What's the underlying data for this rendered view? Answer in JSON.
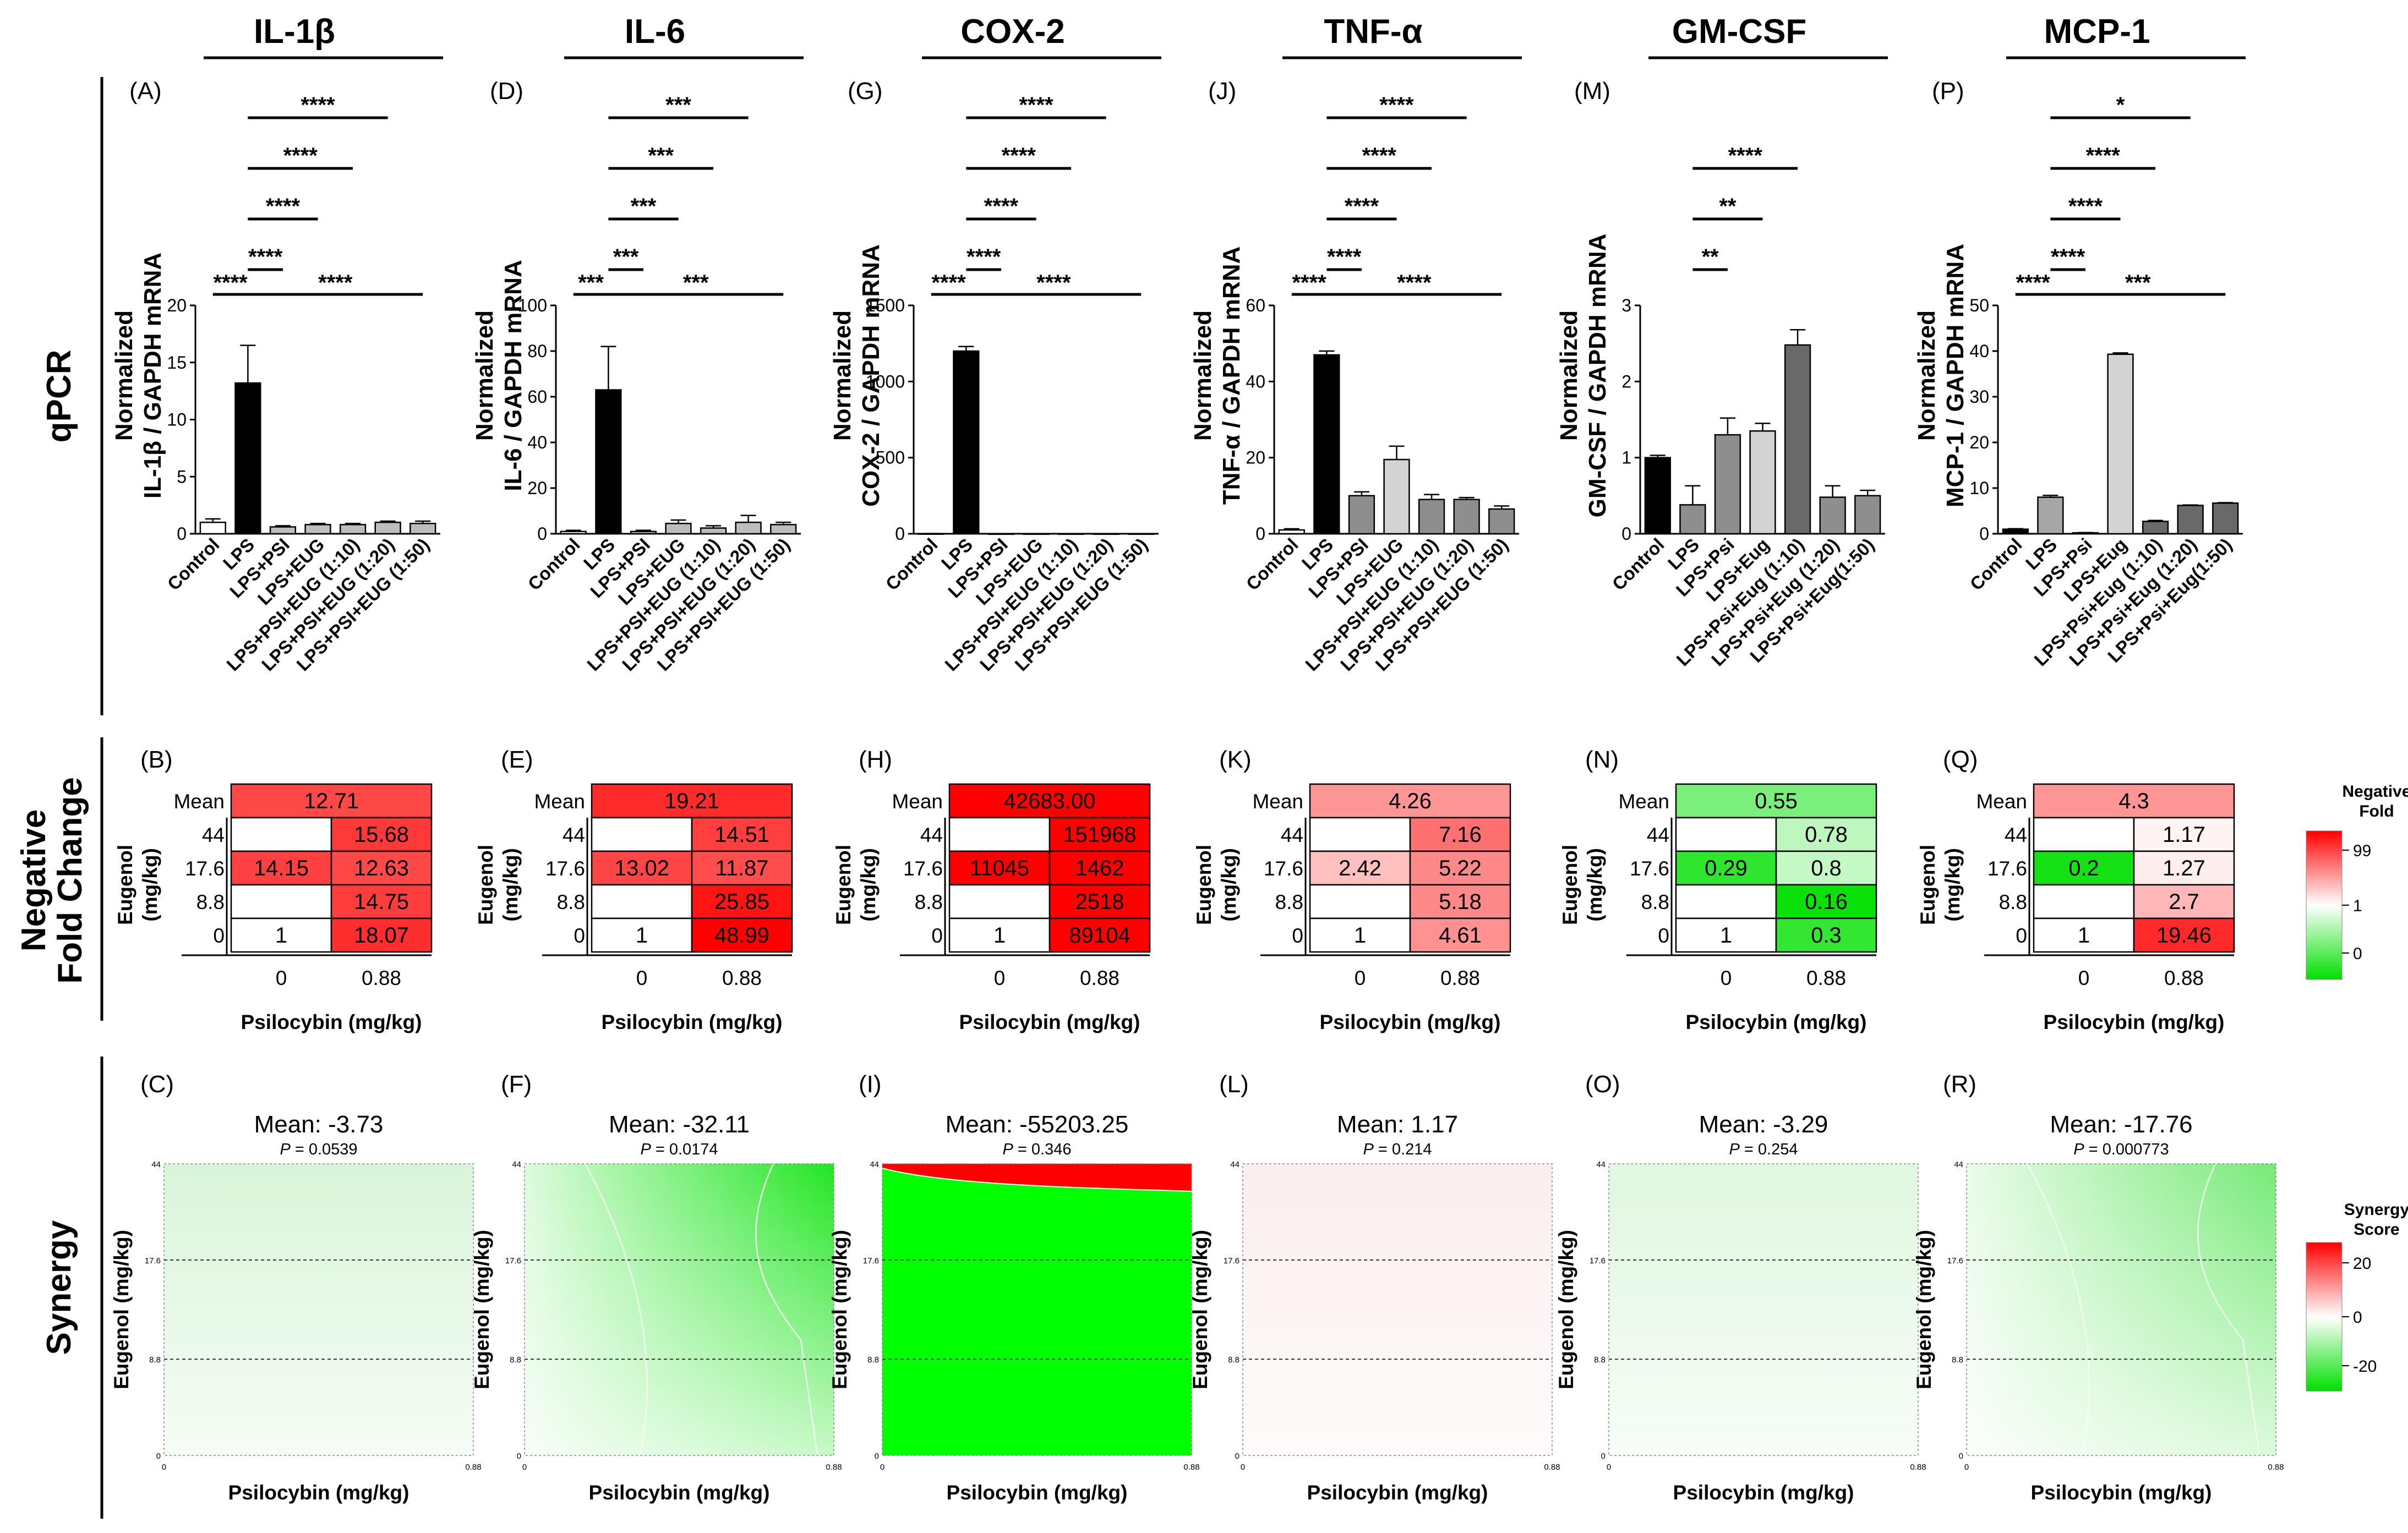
{
  "figure": {
    "rows": {
      "qpcr": "qPCR",
      "nfc_1": "Negative",
      "nfc_2": "Fold Change",
      "synergy": "Synergy"
    },
    "heatmap_axes": {
      "x_label": "Psilocybin (mg/kg)",
      "y_label_1": "Eugenol",
      "y_label_2": "(mg/kg)",
      "mean_label": "Mean",
      "x_ticks": [
        "0",
        "0.88"
      ],
      "y_ticks": [
        "44",
        "17.6",
        "8.8",
        "0"
      ]
    },
    "synergy_axes": {
      "x_label": "Psilocybin (mg/kg)",
      "y_label": "Eugenol (mg/kg)",
      "x_ticks": [
        "0",
        "0.88"
      ],
      "y_ticks": [
        "44",
        "17.6",
        "8.8",
        "0"
      ]
    },
    "legend_nfc": {
      "title_1": "Negative",
      "title_2": "Fold",
      "ticks": [
        "99",
        "1",
        "0"
      ],
      "colors": {
        "high": "#ff0000",
        "mid": "#ffffff",
        "low": "#00e000"
      }
    },
    "legend_syn": {
      "title_1": "Synergy",
      "title_2": "Score",
      "ticks": [
        "20",
        "0",
        "-20"
      ]
    }
  },
  "chart_data": [
    {
      "type": "bar",
      "marker": "IL-1β",
      "panel": "(A)",
      "ylabel_1": "Normalized",
      "ylabel_2": "IL-1β / GAPDH mRNA",
      "ylim": [
        0,
        20
      ],
      "yticks": [
        "0",
        "5",
        "10",
        "15",
        "20"
      ],
      "categories": [
        "Control",
        "LPS",
        "LPS+PSI",
        "LPS+EUG",
        "LPS+PSI+EUG (1:10)",
        "LPS+PSI+EUG (1:20)",
        "LPS+PSI+EUG (1:50)"
      ],
      "values": [
        1.0,
        13.2,
        0.6,
        0.8,
        0.8,
        1.0,
        0.9
      ],
      "errors": [
        0.3,
        3.3,
        0.1,
        0.1,
        0.1,
        0.1,
        0.2
      ],
      "bar_colors": [
        "#ffffff",
        "#000000",
        "#bdbdbd",
        "#bdbdbd",
        "#bdbdbd",
        "#bdbdbd",
        "#bdbdbd"
      ],
      "sig": [
        {
          "a": 1,
          "b": 2,
          "label": "****"
        },
        {
          "a": 1,
          "b": 3,
          "label": "****"
        },
        {
          "a": 1,
          "b": 4,
          "label": "****"
        },
        {
          "a": 1,
          "b": 5,
          "label": "****"
        }
      ],
      "base_sig": [
        {
          "a": 0,
          "b": 1,
          "label": "****"
        },
        {
          "a": 1,
          "b": 6,
          "label": "****"
        }
      ]
    },
    {
      "type": "bar",
      "marker": "IL-6",
      "panel": "(D)",
      "ylabel_1": "Normalized",
      "ylabel_2": "IL-6 / GAPDH mRNA",
      "ylim": [
        0,
        100
      ],
      "yticks": [
        "0",
        "20",
        "40",
        "60",
        "80",
        "100"
      ],
      "categories": [
        "Control",
        "LPS",
        "LPS+PSI",
        "LPS+EUG",
        "LPS+PSI+EUG (1:10)",
        "LPS+PSI+EUG (1:20)",
        "LPS+PSI+EUG (1:50)"
      ],
      "values": [
        1.0,
        63.0,
        1.0,
        4.5,
        2.5,
        5.0,
        4.0
      ],
      "errors": [
        0.5,
        19.0,
        0.5,
        1.5,
        1.0,
        3.0,
        1.0
      ],
      "bar_colors": [
        "#ffffff",
        "#000000",
        "#bdbdbd",
        "#bdbdbd",
        "#bdbdbd",
        "#bdbdbd",
        "#bdbdbd"
      ],
      "sig": [
        {
          "a": 1,
          "b": 2,
          "label": "***"
        },
        {
          "a": 1,
          "b": 3,
          "label": "***"
        },
        {
          "a": 1,
          "b": 4,
          "label": "***"
        },
        {
          "a": 1,
          "b": 5,
          "label": "***"
        }
      ],
      "base_sig": [
        {
          "a": 0,
          "b": 1,
          "label": "***"
        },
        {
          "a": 1,
          "b": 6,
          "label": "***"
        }
      ]
    },
    {
      "type": "bar",
      "marker": "COX-2",
      "panel": "(G)",
      "ylabel_1": "Normalized",
      "ylabel_2": "COX-2 / GAPDH mRNA",
      "ylim": [
        0,
        1500
      ],
      "yticks": [
        "0",
        "500",
        "1000",
        "1500"
      ],
      "categories": [
        "Control",
        "LPS",
        "LPS+PSI",
        "LPS+EUG",
        "LPS+PSI+EUG (1:10)",
        "LPS+PSI+EUG (1:20)",
        "LPS+PSI+EUG (1:50)"
      ],
      "values": [
        1.0,
        1200.0,
        0.5,
        0.5,
        0.5,
        0.5,
        0.5
      ],
      "errors": [
        0.2,
        30.0,
        0.1,
        0.1,
        0.1,
        0.1,
        0.1
      ],
      "bar_colors": [
        "#ffffff",
        "#000000",
        "#bdbdbd",
        "#bdbdbd",
        "#bdbdbd",
        "#bdbdbd",
        "#bdbdbd"
      ],
      "sig": [
        {
          "a": 1,
          "b": 2,
          "label": "****"
        },
        {
          "a": 1,
          "b": 3,
          "label": "****"
        },
        {
          "a": 1,
          "b": 4,
          "label": "****"
        },
        {
          "a": 1,
          "b": 5,
          "label": "****"
        }
      ],
      "base_sig": [
        {
          "a": 0,
          "b": 1,
          "label": "****"
        },
        {
          "a": 1,
          "b": 6,
          "label": "****"
        }
      ]
    },
    {
      "type": "bar",
      "marker": "TNF-α",
      "panel": "(J)",
      "ylabel_1": "Normalized",
      "ylabel_2": "TNF-α / GAPDH mRNA",
      "ylim": [
        0,
        60
      ],
      "yticks": [
        "0",
        "20",
        "40",
        "60"
      ],
      "categories": [
        "Control",
        "LPS",
        "LPS+PSI",
        "LPS+EUG",
        "LPS+PSI+EUG (1:10)",
        "LPS+PSI+EUG (1:20)",
        "LPS+PSI+EUG (1:50)"
      ],
      "values": [
        1.0,
        47.0,
        10.0,
        19.5,
        9.0,
        9.0,
        6.5
      ],
      "errors": [
        0.3,
        1.0,
        1.0,
        3.5,
        1.3,
        0.5,
        0.8
      ],
      "bar_colors": [
        "#ffffff",
        "#000000",
        "#8e8e8e",
        "#d3d3d3",
        "#8e8e8e",
        "#8e8e8e",
        "#8e8e8e"
      ],
      "sig": [
        {
          "a": 1,
          "b": 2,
          "label": "****"
        },
        {
          "a": 1,
          "b": 3,
          "label": "****"
        },
        {
          "a": 1,
          "b": 4,
          "label": "****"
        },
        {
          "a": 1,
          "b": 5,
          "label": "****"
        }
      ],
      "base_sig": [
        {
          "a": 0,
          "b": 1,
          "label": "****"
        },
        {
          "a": 1,
          "b": 6,
          "label": "****"
        }
      ]
    },
    {
      "type": "bar",
      "marker": "GM-CSF",
      "panel": "(M)",
      "ylabel_1": "Normalized",
      "ylabel_2": "GM-CSF / GAPDH mRNA",
      "ylim": [
        0,
        3
      ],
      "yticks": [
        "0",
        "1",
        "2",
        "3"
      ],
      "categories": [
        "Control",
        "LPS",
        "LPS+Psi",
        "LPS+Eug",
        "LPS+Psi+Eug (1:10)",
        "LPS+Psi+Eug (1:20)",
        "LPS+Psi+Eug(1:50)"
      ],
      "values": [
        1.0,
        0.38,
        1.3,
        1.35,
        2.48,
        0.48,
        0.5
      ],
      "errors": [
        0.03,
        0.25,
        0.22,
        0.1,
        0.2,
        0.15,
        0.07
      ],
      "bar_colors": [
        "#000000",
        "#8e8e8e",
        "#8e8e8e",
        "#d3d3d3",
        "#696969",
        "#8e8e8e",
        "#8e8e8e"
      ],
      "sig": [
        {
          "a": 1,
          "b": 2,
          "label": "**"
        },
        {
          "a": 1,
          "b": 3,
          "label": "**"
        },
        {
          "a": 1,
          "b": 4,
          "label": "****"
        }
      ],
      "base_sig": []
    },
    {
      "type": "bar",
      "marker": "MCP-1",
      "panel": "(P)",
      "ylabel_1": "Normalized",
      "ylabel_2": "MCP-1 / GAPDH mRNA",
      "ylim": [
        0,
        50
      ],
      "yticks": [
        "0",
        "10",
        "20",
        "30",
        "40",
        "50"
      ],
      "categories": [
        "Control",
        "LPS",
        "LPS+Psi",
        "LPS+Eug",
        "LPS+Psi+Eug (1:10)",
        "LPS+Psi+Eug (1:20)",
        "LPS+Psi+Eug(1:50)"
      ],
      "values": [
        1.0,
        8.0,
        0.2,
        39.3,
        2.7,
        6.2,
        6.7
      ],
      "errors": [
        0.1,
        0.4,
        0.05,
        0.3,
        0.2,
        0.1,
        0.1
      ],
      "bar_colors": [
        "#000000",
        "#a6a6a6",
        "#a6a6a6",
        "#d3d3d3",
        "#696969",
        "#696969",
        "#696969"
      ],
      "sig": [
        {
          "a": 1,
          "b": 2,
          "label": "****"
        },
        {
          "a": 1,
          "b": 3,
          "label": "****"
        },
        {
          "a": 1,
          "b": 4,
          "label": "****"
        },
        {
          "a": 1,
          "b": 5,
          "label": "*"
        }
      ],
      "base_sig": [
        {
          "a": 0,
          "b": 1,
          "label": "****"
        },
        {
          "a": 1,
          "b": 6,
          "label": "***"
        }
      ]
    },
    {
      "type": "table",
      "kind": "nfc",
      "panel": "(B)",
      "mean": "12.71",
      "rows": [
        [
          "",
          "15.68"
        ],
        [
          "14.15",
          "12.63"
        ],
        [
          "",
          "14.75"
        ],
        [
          "1",
          "18.07"
        ]
      ]
    },
    {
      "type": "table",
      "kind": "nfc",
      "panel": "(E)",
      "mean": "19.21",
      "rows": [
        [
          "",
          "14.51"
        ],
        [
          "13.02",
          "11.87"
        ],
        [
          "",
          "25.85"
        ],
        [
          "1",
          "48.99"
        ]
      ]
    },
    {
      "type": "table",
      "kind": "nfc",
      "panel": "(H)",
      "mean": "42683.00",
      "rows": [
        [
          "",
          "151968"
        ],
        [
          "11045",
          "1462"
        ],
        [
          "",
          "2518"
        ],
        [
          "1",
          "89104"
        ]
      ]
    },
    {
      "type": "table",
      "kind": "nfc",
      "panel": "(K)",
      "mean": "4.26",
      "rows": [
        [
          "",
          "7.16"
        ],
        [
          "2.42",
          "5.22"
        ],
        [
          "",
          "5.18"
        ],
        [
          "1",
          "4.61"
        ]
      ]
    },
    {
      "type": "table",
      "kind": "nfc",
      "panel": "(N)",
      "mean": "0.55",
      "rows": [
        [
          "",
          "0.78"
        ],
        [
          "0.29",
          "0.8"
        ],
        [
          "",
          "0.16"
        ],
        [
          "1",
          "0.3"
        ]
      ]
    },
    {
      "type": "table",
      "kind": "nfc",
      "panel": "(Q)",
      "mean": "4.3",
      "rows": [
        [
          "",
          "1.17"
        ],
        [
          "0.2",
          "1.27"
        ],
        [
          "",
          "2.7"
        ],
        [
          "1",
          "19.46"
        ]
      ]
    },
    {
      "type": "heatmap",
      "kind": "synergy",
      "panel": "(C)",
      "mean_text": "Mean: -3.73",
      "p_label": "P",
      "p_value": " = 0.0539",
      "score": -3.73,
      "fill": "#d9f5d9"
    },
    {
      "type": "heatmap",
      "kind": "synergy",
      "panel": "(F)",
      "mean_text": "Mean: -32.11",
      "p_label": "P",
      "p_value": " = 0.0174",
      "score": -32.11,
      "fill": "#22e622"
    },
    {
      "type": "heatmap",
      "kind": "synergy",
      "panel": "(I)",
      "mean_text": "Mean: -55203.25",
      "p_label": "P",
      "p_value": " = 0.346",
      "score": -55203.25,
      "fill": "#00ff00"
    },
    {
      "type": "heatmap",
      "kind": "synergy",
      "panel": "(L)",
      "mean_text": "Mean: 1.17",
      "p_label": "P",
      "p_value": " = 0.214",
      "score": 1.17,
      "fill": "#fbeeee"
    },
    {
      "type": "heatmap",
      "kind": "synergy",
      "panel": "(O)",
      "mean_text": "Mean: -3.29",
      "p_label": "P",
      "p_value": " = 0.254",
      "score": -3.29,
      "fill": "#e0f7e0"
    },
    {
      "type": "heatmap",
      "kind": "synergy",
      "panel": "(R)",
      "mean_text": "Mean: -17.76",
      "p_label": "P",
      "p_value": " = 0.000773",
      "score": -17.76,
      "fill": "#77ea77"
    }
  ]
}
